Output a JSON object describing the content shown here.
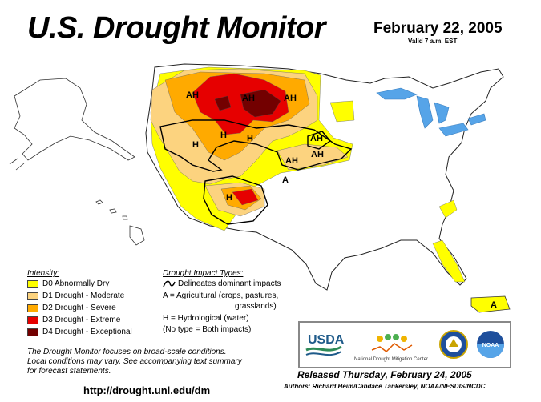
{
  "header": {
    "title": "U.S. Drought Monitor",
    "date": "February 22, 2005",
    "valid": "Valid 7 a.m. EST"
  },
  "colors": {
    "water": "#56a4e8",
    "land": "#ffffff",
    "d0": "#ffff00",
    "d1": "#fcd37f",
    "d2": "#ffaa00",
    "d3": "#e60000",
    "d4": "#730000"
  },
  "map_labels": {
    "ah_1": "AH",
    "ah_2": "AH",
    "ah_3": "AH",
    "ah_4": "AH",
    "ah_5": "AH",
    "ah_6": "AH",
    "h_1": "H",
    "h_2": "H",
    "h_3": "H",
    "h_4": "H",
    "a_1": "A",
    "a_pr": "A"
  },
  "legend": {
    "intensity_heading": "Intensity:",
    "items": [
      {
        "label": "D0 Abnormally Dry",
        "color": "#ffff00"
      },
      {
        "label": "D1 Drought - Moderate",
        "color": "#fcd37f"
      },
      {
        "label": "D2 Drought - Severe",
        "color": "#ffaa00"
      },
      {
        "label": "D3 Drought - Extreme",
        "color": "#e60000"
      },
      {
        "label": "D4 Drought - Exceptional",
        "color": "#730000"
      }
    ],
    "impact_heading": "Drought Impact Types:",
    "impact_items": [
      "Delineates dominant impacts",
      "A = Agricultural (crops, pastures,",
      "grasslands)",
      "H = Hydrological (water)",
      "(No type = Both impacts)"
    ]
  },
  "footer": {
    "focus_note": [
      "The Drought Monitor focuses on broad-scale conditions.",
      "Local conditions may vary.  See accompanying text summary",
      "for forecast statements."
    ],
    "url": "http://drought.unl.edu/dm",
    "released": "Released Thursday, February 24, 2005",
    "authors": "Authors: Richard Heim/Candace Tankersley, NOAA/NESDIS/NCDC"
  },
  "logos": {
    "usda": "USDA",
    "ndmc": "National Drought Mitigation Center",
    "noaa": "NOAA"
  }
}
